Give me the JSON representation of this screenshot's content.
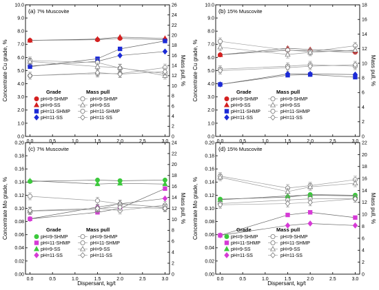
{
  "figure": {
    "xlabel": "Dispersant, kg/t"
  },
  "chart_data": [
    {
      "type": "scatter",
      "panel": "(a)",
      "subtitle": "7% Muscovite",
      "ylabel": "Concentrate Cu grade, %",
      "y2label": "Mass pull, %",
      "xlim": [
        -0.1,
        3.1
      ],
      "ylim": [
        0.0,
        10.0
      ],
      "y2lim": [
        0,
        26
      ],
      "xticks": [
        "0.0",
        "0.5",
        "1.0",
        "1.5",
        "2.0",
        "2.5",
        "3.0"
      ],
      "yticks": [
        "0.0",
        "1.0",
        "2.0",
        "3.0",
        "4.0",
        "5.0",
        "6.0",
        "7.0",
        "8.0",
        "9.0",
        "10.0"
      ],
      "y2ticks": [
        "0",
        "2",
        "4",
        "6",
        "8",
        "10",
        "12",
        "14",
        "16",
        "18",
        "20",
        "22",
        "24",
        "26"
      ],
      "x": [
        0,
        1.5,
        2,
        3
      ],
      "legend_grade_title": "Grade",
      "legend_mass_title": "Mass pull",
      "series": [
        {
          "name": "pH=9-SHMP",
          "axis": "left",
          "marker": "circle",
          "color": "#d42020",
          "filled": true,
          "values": [
            7.3,
            7.35,
            7.45,
            7.35
          ]
        },
        {
          "name": "pH=9-SS",
          "axis": "left",
          "marker": "triangle",
          "color": "#d42020",
          "filled": true,
          "values": [
            7.3,
            7.4,
            7.55,
            7.45
          ]
        },
        {
          "name": "pH=11-SHMP",
          "axis": "left",
          "marker": "square",
          "color": "#1c2bd6",
          "filled": true,
          "values": [
            5.3,
            5.9,
            6.65,
            7.25
          ]
        },
        {
          "name": "pH=11-SS",
          "axis": "left",
          "marker": "diamond",
          "color": "#1c2bd6",
          "filled": true,
          "values": [
            5.35,
            5.7,
            6.15,
            6.45
          ]
        },
        {
          "name": "pH=9-SHMP",
          "axis": "right",
          "marker": "circle",
          "color": "#777777",
          "filled": false,
          "values": [
            15.0,
            14.6,
            13.5,
            12.4
          ]
        },
        {
          "name": "pH=9-SS",
          "axis": "right",
          "marker": "triangle",
          "color": "#777777",
          "filled": false,
          "values": [
            14.8,
            13.8,
            13.6,
            12.0
          ]
        },
        {
          "name": "pH=11-SHMP",
          "axis": "right",
          "marker": "circle",
          "color": "#777777",
          "filled": false,
          "values": [
            12.0,
            12.4,
            12.4,
            13.6
          ]
        },
        {
          "name": "pH=11-SS",
          "axis": "right",
          "marker": "diamond",
          "color": "#777777",
          "filled": false,
          "values": [
            12.0,
            12.6,
            12.3,
            12.8
          ]
        }
      ]
    },
    {
      "type": "scatter",
      "panel": "(b)",
      "subtitle": "15% Muscovite",
      "ylabel": "Concentrate Cu grade, %",
      "y2label": "Mass pull, %",
      "xlim": [
        -0.1,
        3.1
      ],
      "ylim": [
        0.0,
        10.0
      ],
      "y2lim": [
        0,
        18
      ],
      "xticks": [
        "0.0",
        "0.5",
        "1.0",
        "1.5",
        "2.0",
        "2.5",
        "3.0"
      ],
      "yticks": [
        "0.0",
        "1.0",
        "2.0",
        "3.0",
        "4.0",
        "5.0",
        "6.0",
        "7.0",
        "8.0",
        "9.0",
        "10.0"
      ],
      "y2ticks": [
        "0",
        "2",
        "4",
        "6",
        "8",
        "10",
        "12",
        "14",
        "16",
        "18"
      ],
      "x": [
        0,
        1.5,
        2,
        3
      ],
      "legend_grade_title": "Grade",
      "legend_mass_title": "Mass pull",
      "series": [
        {
          "name": "pH=9-SHMP",
          "axis": "left",
          "marker": "circle",
          "color": "#d42020",
          "filled": true,
          "values": [
            6.2,
            6.55,
            6.5,
            6.4
          ]
        },
        {
          "name": "pH=9-SS",
          "axis": "left",
          "marker": "triangle",
          "color": "#d42020",
          "filled": true,
          "values": [
            6.2,
            6.7,
            6.6,
            6.5
          ]
        },
        {
          "name": "pH=11-SHMP",
          "axis": "left",
          "marker": "square",
          "color": "#1c2bd6",
          "filled": true,
          "values": [
            3.95,
            4.65,
            4.7,
            4.5
          ]
        },
        {
          "name": "pH=11-SS",
          "axis": "left",
          "marker": "diamond",
          "color": "#1c2bd6",
          "filled": true,
          "values": [
            3.95,
            4.75,
            4.75,
            4.7
          ]
        },
        {
          "name": "pH=9-SHMP",
          "axis": "right",
          "marker": "circle",
          "color": "#777777",
          "filled": false,
          "values": [
            13.0,
            11.8,
            11.6,
            12.4
          ]
        },
        {
          "name": "pH=9-SS",
          "axis": "right",
          "marker": "triangle",
          "color": "#777777",
          "filled": false,
          "values": [
            12.2,
            11.2,
            11.5,
            11.8
          ]
        },
        {
          "name": "pH=11-SHMP",
          "axis": "right",
          "marker": "circle",
          "color": "#777777",
          "filled": false,
          "values": [
            9.2,
            9.6,
            9.8,
            9.6
          ]
        },
        {
          "name": "pH=11-SS",
          "axis": "right",
          "marker": "diamond",
          "color": "#777777",
          "filled": false,
          "values": [
            9.0,
            9.4,
            9.6,
            9.8
          ]
        }
      ]
    },
    {
      "type": "scatter",
      "panel": "(c)",
      "subtitle": "7% Muscovite",
      "ylabel": "Concentrate Mo grade, %",
      "y2label": "Mass pull, %",
      "xlim": [
        -0.1,
        3.1
      ],
      "ylim": [
        0.0,
        0.2
      ],
      "y2lim": [
        0,
        24
      ],
      "xticks": [
        "0.0",
        "0.5",
        "1.0",
        "1.5",
        "2.0",
        "2.5",
        "3.0"
      ],
      "yticks": [
        "0.00",
        "0.02",
        "0.04",
        "0.06",
        "0.08",
        "0.10",
        "0.12",
        "0.14",
        "0.16",
        "0.18",
        "0.20"
      ],
      "y2ticks": [
        "0",
        "2",
        "4",
        "6",
        "8",
        "10",
        "12",
        "14",
        "16",
        "18",
        "20",
        "22",
        "24"
      ],
      "x": [
        0,
        1.5,
        2,
        3
      ],
      "legend_grade_title": "Grade",
      "legend_mass_title": "Mass pull",
      "series": [
        {
          "name": "pH=9-SHMP",
          "axis": "left",
          "marker": "circle",
          "color": "#3cc93c",
          "filled": true,
          "values": [
            0.141,
            0.143,
            0.142,
            0.143
          ]
        },
        {
          "name": "pH=11-SHMP",
          "axis": "left",
          "marker": "square",
          "color": "#d63ad6",
          "filled": true,
          "values": [
            0.084,
            0.094,
            0.1,
            0.13
          ]
        },
        {
          "name": "pH=9-SS",
          "axis": "left",
          "marker": "triangle",
          "color": "#3cc93c",
          "filled": true,
          "values": [
            0.142,
            0.137,
            0.138,
            0.137
          ]
        },
        {
          "name": "pH=11-SS",
          "axis": "left",
          "marker": "diamond",
          "color": "#d63ad6",
          "filled": true,
          "values": [
            0.084,
            0.102,
            0.107,
            0.115
          ]
        },
        {
          "name": "pH=9-SHMP",
          "axis": "right",
          "marker": "circle",
          "color": "#777777",
          "filled": false,
          "values": [
            14.2,
            13.4,
            12.8,
            12.2
          ]
        },
        {
          "name": "pH=11-SHMP",
          "axis": "right",
          "marker": "circle",
          "color": "#777777",
          "filled": false,
          "values": [
            11.5,
            12.0,
            11.6,
            12.6
          ]
        },
        {
          "name": "pH=9-SS",
          "axis": "right",
          "marker": "triangle",
          "color": "#777777",
          "filled": false,
          "values": [
            11.5,
            11.8,
            12.9,
            12.1
          ]
        },
        {
          "name": "pH=11-SS",
          "axis": "right",
          "marker": "diamond",
          "color": "#777777",
          "filled": false,
          "values": [
            11.6,
            12.0,
            12.2,
            12.0
          ]
        }
      ]
    },
    {
      "type": "scatter",
      "panel": "(d)",
      "subtitle": "15% Muscovite",
      "ylabel": "Concentrate Mo grade, %",
      "y2label": "Mass pull, %",
      "xlim": [
        -0.1,
        3.1
      ],
      "ylim": [
        0.0,
        0.2
      ],
      "y2lim": [
        0,
        22
      ],
      "xticks": [
        "0.0",
        "0.5",
        "1.0",
        "1.5",
        "2.0",
        "2.5",
        "3.0"
      ],
      "yticks": [
        "0.00",
        "0.02",
        "0.04",
        "0.06",
        "0.08",
        "0.10",
        "0.12",
        "0.14",
        "0.16",
        "0.18",
        "0.20"
      ],
      "y2ticks": [
        "0",
        "2",
        "4",
        "6",
        "8",
        "10",
        "12",
        "14",
        "16",
        "18",
        "20",
        "22"
      ],
      "x": [
        0,
        1.5,
        2,
        3
      ],
      "legend_grade_title": "Grade",
      "legend_mass_title": "Mass pull",
      "series": [
        {
          "name": "pH=9-SHMP",
          "axis": "left",
          "marker": "circle",
          "color": "#3cc93c",
          "filled": true,
          "values": [
            0.114,
            0.117,
            0.121,
            0.12
          ]
        },
        {
          "name": "pH=11-SHMP",
          "axis": "left",
          "marker": "square",
          "color": "#d63ad6",
          "filled": true,
          "values": [
            0.059,
            0.09,
            0.094,
            0.086
          ]
        },
        {
          "name": "pH=9-SS",
          "axis": "left",
          "marker": "triangle",
          "color": "#3cc93c",
          "filled": true,
          "values": [
            0.113,
            0.119,
            0.12,
            0.119
          ]
        },
        {
          "name": "pH=11-SS",
          "axis": "left",
          "marker": "diamond",
          "color": "#d63ad6",
          "filled": true,
          "values": [
            0.059,
            0.074,
            0.077,
            0.074
          ]
        },
        {
          "name": "pH=9-SHMP",
          "axis": "right",
          "marker": "circle",
          "color": "#777777",
          "filled": false,
          "values": [
            16.4,
            14.4,
            14.8,
            15.8
          ]
        },
        {
          "name": "pH=11-SHMP",
          "axis": "right",
          "marker": "circle",
          "color": "#777777",
          "filled": false,
          "values": [
            11.8,
            12.4,
            12.6,
            12.6
          ]
        },
        {
          "name": "pH=9-SS",
          "axis": "right",
          "marker": "triangle",
          "color": "#777777",
          "filled": false,
          "values": [
            16.2,
            13.8,
            14.6,
            15.2
          ]
        },
        {
          "name": "pH=11-SS",
          "axis": "right",
          "marker": "diamond",
          "color": "#777777",
          "filled": false,
          "values": [
            11.6,
            11.8,
            12.0,
            12.6
          ]
        }
      ]
    }
  ]
}
